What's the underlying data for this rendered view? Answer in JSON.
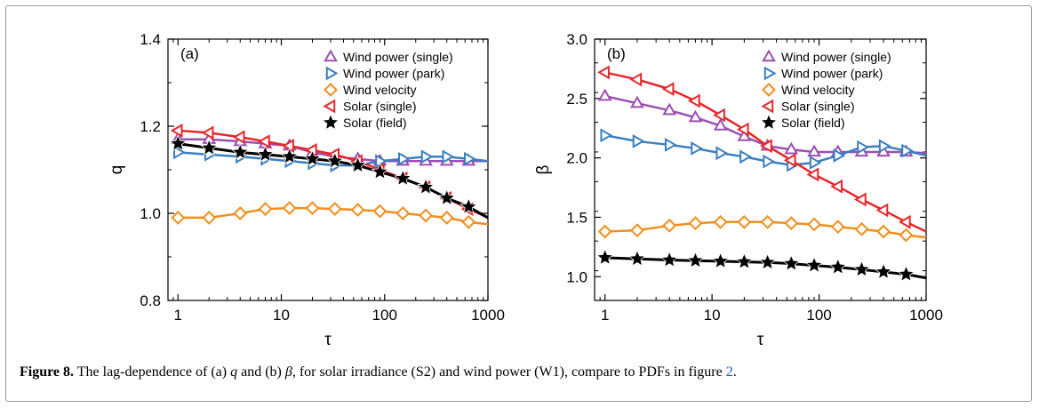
{
  "caption": {
    "figure_label": "Figure 8.",
    "t1": " The lag-dependence of (a) ",
    "q": "q",
    "t2": " and (b) ",
    "beta": "β",
    "t3": ", for solar irradiance (S2) and wind power (W1), compare to  PDFs in figure ",
    "ref": "2",
    "t4": "."
  },
  "colors": {
    "wind_single": "#9b4fb0",
    "wind_park": "#3a7fc0",
    "wind_velocity": "#f28e1c",
    "solar_single": "#e8262a",
    "solar_field": "#000000"
  },
  "chart_data": [
    {
      "type": "line",
      "panel_label": "(a)",
      "xlabel": "τ",
      "ylabel": "q",
      "xscale": "log",
      "xlim": [
        0.8,
        1000
      ],
      "ylim": [
        0.8,
        1.4
      ],
      "xticks": [
        1,
        10,
        100,
        1000
      ],
      "xtick_labels": [
        "1",
        "10",
        "100",
        "1000"
      ],
      "yticks": [
        0.8,
        1.0,
        1.2,
        1.4
      ],
      "ytick_labels": [
        "0.8",
        "1.0",
        "1.2",
        "1.4"
      ],
      "legend_position": "top-right",
      "series": [
        {
          "name": "Wind power (single)",
          "marker": "triangle-up",
          "color": "#9b4fb0",
          "x": [
            1,
            2,
            4,
            7,
            12,
            20,
            33,
            55,
            90,
            150,
            250,
            400,
            650,
            1000
          ],
          "y": [
            1.17,
            1.17,
            1.165,
            1.16,
            1.155,
            1.14,
            1.13,
            1.125,
            1.12,
            1.12,
            1.12,
            1.12,
            1.12,
            1.12
          ]
        },
        {
          "name": "Wind power (park)",
          "marker": "triangle-right",
          "color": "#3a7fc0",
          "x": [
            1,
            2,
            4,
            7,
            12,
            20,
            33,
            55,
            90,
            150,
            250,
            400,
            650,
            1000
          ],
          "y": [
            1.14,
            1.135,
            1.13,
            1.125,
            1.12,
            1.115,
            1.11,
            1.11,
            1.12,
            1.125,
            1.13,
            1.13,
            1.125,
            1.12
          ]
        },
        {
          "name": "Wind velocity",
          "marker": "diamond",
          "color": "#f28e1c",
          "x": [
            1,
            2,
            4,
            7,
            12,
            20,
            33,
            55,
            90,
            150,
            250,
            400,
            650,
            1000
          ],
          "y": [
            0.99,
            0.99,
            1.0,
            1.01,
            1.012,
            1.012,
            1.01,
            1.008,
            1.005,
            1.0,
            0.995,
            0.99,
            0.98,
            0.975
          ]
        },
        {
          "name": "Solar (single)",
          "marker": "triangle-left",
          "color": "#e8262a",
          "x": [
            1,
            2,
            4,
            7,
            12,
            20,
            33,
            55,
            90,
            150,
            250,
            400,
            650,
            1000
          ],
          "y": [
            1.19,
            1.185,
            1.175,
            1.165,
            1.155,
            1.145,
            1.135,
            1.12,
            1.1,
            1.08,
            1.06,
            1.035,
            1.01,
            0.99
          ]
        },
        {
          "name": "Solar (field)",
          "marker": "star",
          "color": "#000000",
          "x": [
            1,
            2,
            4,
            7,
            12,
            20,
            33,
            55,
            90,
            150,
            250,
            400,
            650,
            1000
          ],
          "y": [
            1.16,
            1.15,
            1.14,
            1.135,
            1.13,
            1.125,
            1.12,
            1.11,
            1.095,
            1.08,
            1.06,
            1.035,
            1.015,
            0.99
          ]
        }
      ]
    },
    {
      "type": "line",
      "panel_label": "(b)",
      "xlabel": "τ",
      "ylabel": "β",
      "xscale": "log",
      "xlim": [
        0.8,
        1000
      ],
      "ylim": [
        0.8,
        3.0
      ],
      "xticks": [
        1,
        10,
        100,
        1000
      ],
      "xtick_labels": [
        "1",
        "10",
        "100",
        "1000"
      ],
      "yticks": [
        1.0,
        1.5,
        2.0,
        2.5,
        3.0
      ],
      "ytick_labels": [
        "1.0",
        "1.5",
        "2.0",
        "2.5",
        "3.0"
      ],
      "legend_position": "top-right",
      "series": [
        {
          "name": "Wind power (single)",
          "marker": "triangle-up",
          "color": "#9b4fb0",
          "x": [
            1,
            2,
            4,
            7,
            12,
            20,
            33,
            55,
            90,
            150,
            250,
            400,
            650,
            1000
          ],
          "y": [
            2.52,
            2.46,
            2.4,
            2.34,
            2.27,
            2.18,
            2.1,
            2.07,
            2.05,
            2.05,
            2.05,
            2.05,
            2.05,
            2.04
          ]
        },
        {
          "name": "Wind power (park)",
          "marker": "triangle-right",
          "color": "#3a7fc0",
          "x": [
            1,
            2,
            4,
            7,
            12,
            20,
            33,
            55,
            90,
            150,
            250,
            400,
            650,
            1000
          ],
          "y": [
            2.19,
            2.14,
            2.11,
            2.08,
            2.04,
            2.01,
            1.97,
            1.94,
            1.96,
            2.02,
            2.09,
            2.1,
            2.06,
            2.02
          ]
        },
        {
          "name": "Wind velocity",
          "marker": "diamond",
          "color": "#f28e1c",
          "x": [
            1,
            2,
            4,
            7,
            12,
            20,
            33,
            55,
            90,
            150,
            250,
            400,
            650,
            1000
          ],
          "y": [
            1.38,
            1.39,
            1.43,
            1.45,
            1.46,
            1.46,
            1.46,
            1.45,
            1.44,
            1.42,
            1.4,
            1.38,
            1.35,
            1.33
          ]
        },
        {
          "name": "Solar (single)",
          "marker": "triangle-left",
          "color": "#e8262a",
          "x": [
            1,
            2,
            4,
            7,
            12,
            20,
            33,
            55,
            90,
            150,
            250,
            400,
            650,
            1000
          ],
          "y": [
            2.72,
            2.66,
            2.58,
            2.48,
            2.36,
            2.24,
            2.1,
            1.98,
            1.86,
            1.76,
            1.65,
            1.56,
            1.46,
            1.38
          ]
        },
        {
          "name": "Solar (field)",
          "marker": "star",
          "color": "#000000",
          "x": [
            1,
            2,
            4,
            7,
            12,
            20,
            33,
            55,
            90,
            150,
            250,
            400,
            650,
            1000
          ],
          "y": [
            1.16,
            1.15,
            1.14,
            1.135,
            1.13,
            1.125,
            1.12,
            1.11,
            1.095,
            1.08,
            1.06,
            1.04,
            1.02,
            0.99
          ]
        }
      ]
    }
  ]
}
